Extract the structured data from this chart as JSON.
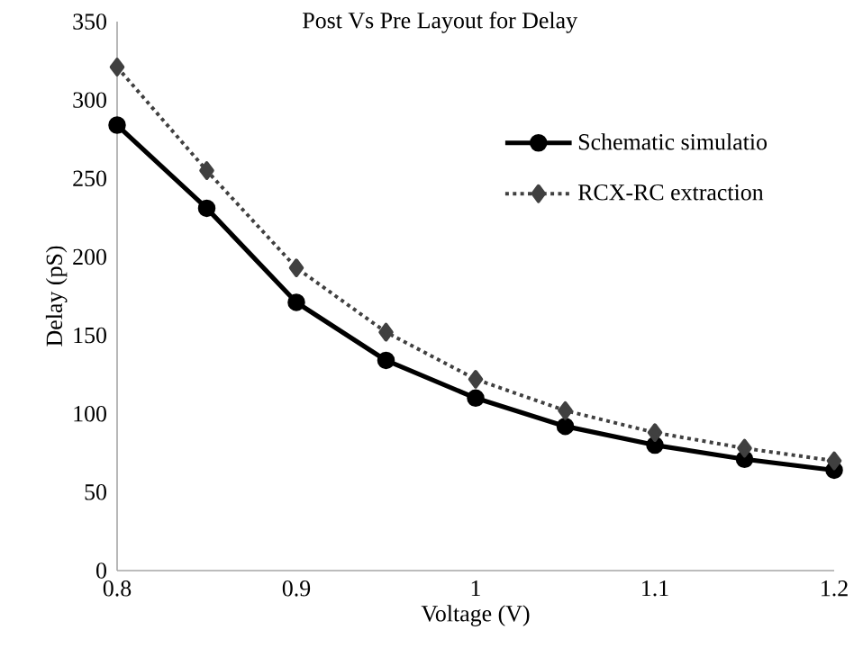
{
  "chart_data": {
    "type": "line",
    "title": "Post Vs Pre Layout for Delay",
    "xlabel": "Voltage (V)",
    "ylabel": "Delay (pS)",
    "x": [
      0.8,
      0.85,
      0.9,
      0.95,
      1.0,
      1.05,
      1.1,
      1.15,
      1.2
    ],
    "series": [
      {
        "name": "Schematic simulatio",
        "color": "#000000",
        "marker": "circle",
        "line_style": "solid",
        "values": [
          284,
          231,
          171,
          134,
          110,
          92,
          80,
          71,
          64
        ]
      },
      {
        "name": "RCX-RC extraction",
        "color": "#404040",
        "marker": "diamond",
        "line_style": "dotted",
        "values": [
          321,
          255,
          193,
          152,
          122,
          102,
          88,
          78,
          70
        ]
      }
    ],
    "xlim": [
      0.8,
      1.2
    ],
    "xticks": [
      0.8,
      0.9,
      1,
      1.1,
      1.2
    ],
    "ylim": [
      0,
      350
    ],
    "yticks": [
      0,
      50,
      100,
      150,
      200,
      250,
      300,
      350
    ],
    "grid": false,
    "legend": "top right"
  }
}
